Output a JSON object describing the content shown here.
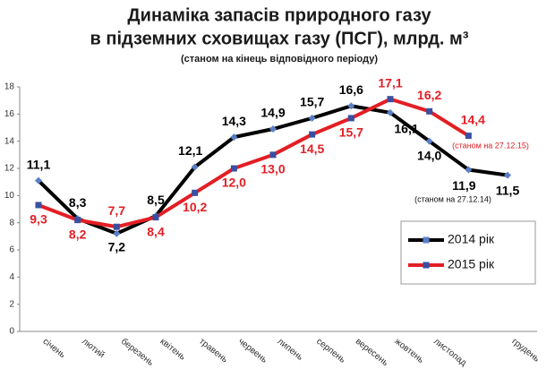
{
  "chart_data": {
    "type": "line",
    "title": [
      "Динаміка запасів природного газу",
      "в підземних сховищах газу (ПСГ), млрд. м³"
    ],
    "subtitle": "(станом на кінець відповідного періоду)",
    "categories": [
      "січень",
      "лютий",
      "березень",
      "квітень",
      "травень",
      "червень",
      "липень",
      "серпень",
      "вересень",
      "жовтень",
      "листопад",
      null,
      "грудень"
    ],
    "series": [
      {
        "name": "2014 рік",
        "color": "#000000",
        "marker_color": "#5b7fc4",
        "values": [
          11.1,
          8.3,
          7.2,
          8.5,
          12.1,
          14.3,
          14.9,
          15.7,
          16.6,
          16.1,
          14.0,
          11.9,
          11.5
        ],
        "value_labels": [
          "11,1",
          "8,3",
          "7,2",
          "8,5",
          "12,1",
          "14,3",
          "14,9",
          "15,7",
          "16,6",
          "16,1",
          "14,0",
          "11,9",
          "11,5"
        ]
      },
      {
        "name": "2015 рік",
        "color": "#e31e24",
        "marker_color": "#3a4fa0",
        "values": [
          9.3,
          8.2,
          7.7,
          8.4,
          10.2,
          12.0,
          13.0,
          14.5,
          15.7,
          17.1,
          16.2,
          14.4,
          null
        ],
        "value_labels": [
          "9,3",
          "8,2",
          "7,7",
          "8,4",
          "10,2",
          "12,0",
          "13,0",
          "14,5",
          "15,7",
          "17,1",
          "16,2",
          "14,4",
          null
        ]
      }
    ],
    "annotations": [
      "(станом на 27.12.15)",
      "(станом на 27.12.14)"
    ],
    "ylim": [
      0,
      18
    ],
    "yticks": [
      0,
      2,
      4,
      6,
      8,
      10,
      12,
      14,
      16,
      18
    ],
    "grid": false
  }
}
